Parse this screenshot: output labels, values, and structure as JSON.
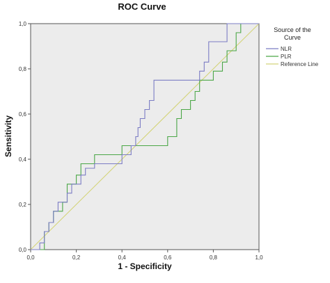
{
  "chart_data": {
    "type": "line",
    "title": "ROC Curve",
    "xlabel": "1 - Specificity",
    "ylabel": "Sensitivity",
    "xlim": [
      0,
      1
    ],
    "ylim": [
      0,
      1
    ],
    "x_ticks": [
      "0,0",
      "0,2",
      "0,4",
      "0,6",
      "0,8",
      "1,0"
    ],
    "y_ticks": [
      "0,0",
      "0,2",
      "0,4",
      "0,6",
      "0,8",
      "1,0"
    ],
    "grid": false,
    "legend": {
      "title_line1": "Source of the",
      "title_line2": "Curve",
      "placement": "right"
    },
    "colors": {
      "plot_bg": "#ececec",
      "nlr": "#7b7cc4",
      "plr": "#4aa646",
      "reference": "#d4d47a"
    },
    "series": [
      {
        "name": "NLR",
        "points": [
          [
            0,
            0
          ],
          [
            0.04,
            0
          ],
          [
            0.04,
            0.03
          ],
          [
            0.06,
            0.03
          ],
          [
            0.06,
            0.08
          ],
          [
            0.08,
            0.08
          ],
          [
            0.08,
            0.12
          ],
          [
            0.1,
            0.12
          ],
          [
            0.1,
            0.17
          ],
          [
            0.12,
            0.17
          ],
          [
            0.12,
            0.21
          ],
          [
            0.16,
            0.21
          ],
          [
            0.16,
            0.25
          ],
          [
            0.18,
            0.25
          ],
          [
            0.18,
            0.29
          ],
          [
            0.22,
            0.29
          ],
          [
            0.22,
            0.33
          ],
          [
            0.24,
            0.33
          ],
          [
            0.24,
            0.36
          ],
          [
            0.28,
            0.36
          ],
          [
            0.28,
            0.38
          ],
          [
            0.4,
            0.38
          ],
          [
            0.4,
            0.42
          ],
          [
            0.44,
            0.42
          ],
          [
            0.44,
            0.46
          ],
          [
            0.46,
            0.46
          ],
          [
            0.46,
            0.5
          ],
          [
            0.47,
            0.5
          ],
          [
            0.47,
            0.54
          ],
          [
            0.48,
            0.54
          ],
          [
            0.48,
            0.58
          ],
          [
            0.5,
            0.58
          ],
          [
            0.5,
            0.62
          ],
          [
            0.52,
            0.62
          ],
          [
            0.52,
            0.66
          ],
          [
            0.54,
            0.66
          ],
          [
            0.54,
            0.75
          ],
          [
            0.74,
            0.75
          ],
          [
            0.74,
            0.79
          ],
          [
            0.76,
            0.79
          ],
          [
            0.76,
            0.83
          ],
          [
            0.78,
            0.83
          ],
          [
            0.78,
            0.92
          ],
          [
            0.86,
            0.92
          ],
          [
            0.86,
            1.0
          ],
          [
            1.0,
            1.0
          ]
        ]
      },
      {
        "name": "PLR",
        "points": [
          [
            0,
            0
          ],
          [
            0.06,
            0
          ],
          [
            0.06,
            0.08
          ],
          [
            0.08,
            0.08
          ],
          [
            0.08,
            0.12
          ],
          [
            0.1,
            0.12
          ],
          [
            0.1,
            0.17
          ],
          [
            0.14,
            0.17
          ],
          [
            0.14,
            0.21
          ],
          [
            0.16,
            0.21
          ],
          [
            0.16,
            0.29
          ],
          [
            0.2,
            0.29
          ],
          [
            0.2,
            0.33
          ],
          [
            0.22,
            0.33
          ],
          [
            0.22,
            0.38
          ],
          [
            0.28,
            0.38
          ],
          [
            0.28,
            0.42
          ],
          [
            0.4,
            0.42
          ],
          [
            0.4,
            0.46
          ],
          [
            0.6,
            0.46
          ],
          [
            0.6,
            0.5
          ],
          [
            0.64,
            0.5
          ],
          [
            0.64,
            0.58
          ],
          [
            0.66,
            0.58
          ],
          [
            0.66,
            0.62
          ],
          [
            0.7,
            0.62
          ],
          [
            0.7,
            0.66
          ],
          [
            0.72,
            0.66
          ],
          [
            0.72,
            0.7
          ],
          [
            0.74,
            0.7
          ],
          [
            0.74,
            0.75
          ],
          [
            0.8,
            0.75
          ],
          [
            0.8,
            0.79
          ],
          [
            0.84,
            0.79
          ],
          [
            0.84,
            0.83
          ],
          [
            0.86,
            0.83
          ],
          [
            0.86,
            0.88
          ],
          [
            0.9,
            0.88
          ],
          [
            0.9,
            0.96
          ],
          [
            0.92,
            0.96
          ],
          [
            0.92,
            1.0
          ],
          [
            1.0,
            1.0
          ]
        ]
      },
      {
        "name": "Reference Line",
        "points": [
          [
            0,
            0
          ],
          [
            1,
            1
          ]
        ]
      }
    ]
  }
}
